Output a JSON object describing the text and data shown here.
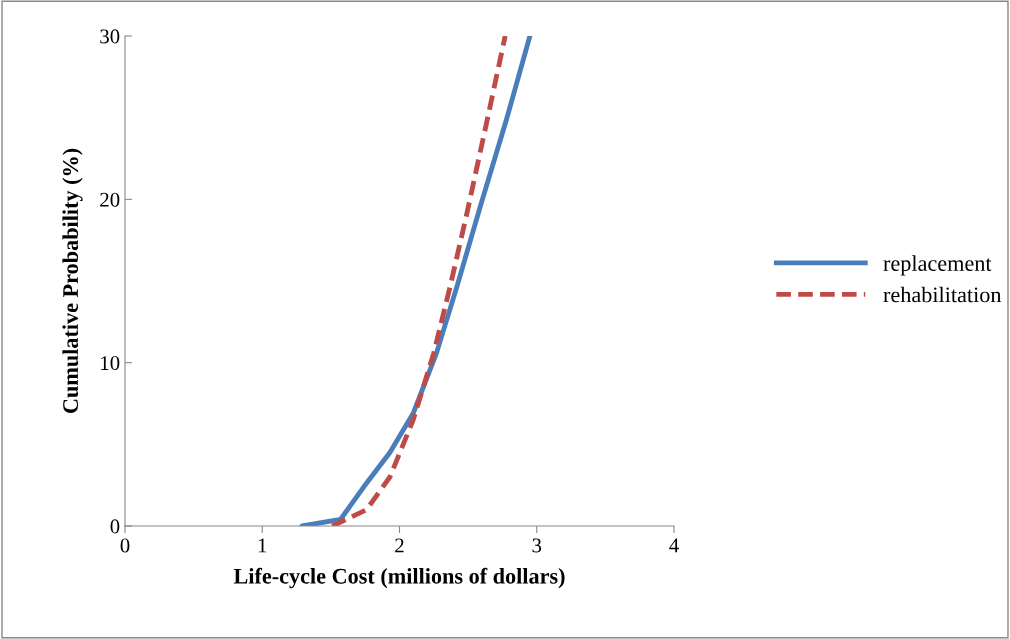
{
  "chart_data": {
    "type": "line",
    "xlabel": "Life-cycle Cost (millions of dollars)",
    "ylabel": "Cumulative Probability (%)",
    "xlim": [
      0,
      4
    ],
    "xticks": [
      0,
      1,
      2,
      3,
      4
    ],
    "ylim": [
      0,
      30
    ],
    "yticks": [
      0,
      10,
      20,
      30
    ],
    "grid": false,
    "legend": "right",
    "marker": "none",
    "series": [
      {
        "name": "replacement",
        "color": "#4a7ebb",
        "line_style": "solid",
        "x": [
          1.29,
          1.57,
          1.74,
          1.93,
          2.1,
          2.27,
          2.42,
          2.59,
          2.78,
          2.95
        ],
        "values": [
          0,
          0.4,
          2.4,
          4.5,
          6.9,
          10.6,
          14.7,
          19.6,
          24.9,
          30
        ]
      },
      {
        "name": "rehabilitation",
        "color": "#be4b48",
        "line_style": "dashed",
        "x": [
          1.51,
          1.76,
          1.93,
          2.1,
          2.25,
          2.37,
          2.49,
          2.64,
          2.77
        ],
        "values": [
          0,
          1.0,
          3.0,
          6.5,
          10.6,
          14.7,
          19.1,
          24.9,
          30
        ]
      }
    ]
  }
}
